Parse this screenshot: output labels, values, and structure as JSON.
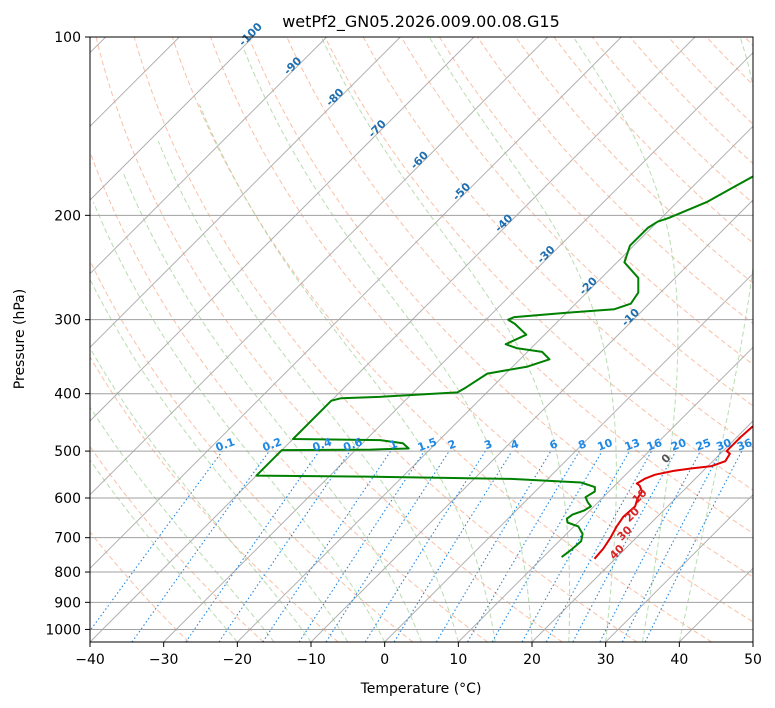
{
  "chart_data": {
    "type": "line",
    "title": "wetPf2_GN05.2026.009.00.08.G15",
    "xlabel": "Temperature (°C)",
    "ylabel": "Pressure (hPa)",
    "xlim": [
      -40,
      50
    ],
    "ylim": [
      1050,
      100
    ],
    "y_scale": "log",
    "x_ticks": [
      -40,
      -30,
      -20,
      -10,
      0,
      10,
      20,
      30,
      40,
      50
    ],
    "x_tick_labels": [
      "−40",
      "−30",
      "−20",
      "−10",
      "0",
      "10",
      "20",
      "30",
      "40",
      "50"
    ],
    "y_ticks": [
      100,
      200,
      300,
      400,
      500,
      600,
      700,
      800,
      900,
      1000
    ],
    "y_tick_labels": [
      "100",
      "200",
      "300",
      "400",
      "500",
      "600",
      "700",
      "800",
      "900",
      "1000"
    ],
    "grid": true,
    "colors": {
      "temperature": "#e00000",
      "dewpoint": "#008000",
      "isotherm": "#b0b0b0",
      "dry_adiabat": "#f6a582",
      "moist_adiabat": "#a6d39e",
      "mixing_ratio": "#1e88e5",
      "hidden_adiabat": "#d2b48c"
    },
    "series": [
      {
        "key": "temperature",
        "points": [
          [
            17.2,
            760
          ],
          [
            17.0,
            730
          ],
          [
            16.5,
            700
          ],
          [
            15.8,
            670
          ],
          [
            15.4,
            645
          ],
          [
            15.6,
            620
          ],
          [
            14.8,
            600
          ],
          [
            14.5,
            585
          ],
          [
            13.4,
            572
          ],
          [
            12.7,
            567
          ],
          [
            13.2,
            556
          ],
          [
            14.0,
            548
          ],
          [
            16.0,
            540
          ],
          [
            18.0,
            535
          ],
          [
            20.5,
            530
          ],
          [
            21.7,
            520
          ],
          [
            21.3,
            505
          ],
          [
            20.5,
            500
          ],
          [
            20.5,
            475
          ],
          [
            20.7,
            455
          ],
          [
            21.3,
            445
          ],
          [
            20.9,
            430
          ],
          [
            20.0,
            415
          ],
          [
            18.8,
            400
          ],
          [
            16.8,
            375
          ],
          [
            14.6,
            345
          ],
          [
            12.2,
            305
          ],
          [
            10.6,
            270
          ],
          [
            9.8,
            245
          ],
          [
            8.8,
            220
          ],
          [
            7.5,
            200
          ],
          [
            6.6,
            180
          ],
          [
            5.8,
            165
          ],
          [
            5.0,
            155
          ],
          [
            3.8,
            140
          ],
          [
            2.6,
            130
          ],
          [
            2.1,
            125
          ],
          [
            2.0,
            120
          ],
          [
            2.6,
            115
          ],
          [
            4.0,
            110
          ],
          [
            6.5,
            104
          ],
          [
            7.3,
            100
          ]
        ]
      },
      {
        "key": "dewpoint",
        "points": [
          [
            12.5,
            755
          ],
          [
            12.8,
            735
          ],
          [
            13.0,
            710
          ],
          [
            12.2,
            690
          ],
          [
            10.6,
            670
          ],
          [
            8.6,
            660
          ],
          [
            8.0,
            650
          ],
          [
            8.2,
            640
          ],
          [
            9.2,
            630
          ],
          [
            9.6,
            620
          ],
          [
            8.6,
            610
          ],
          [
            7.6,
            598
          ],
          [
            8.1,
            585
          ],
          [
            7.5,
            575
          ],
          [
            5.0,
            565
          ],
          [
            -5.0,
            557
          ],
          [
            -25.0,
            552
          ],
          [
            -40.0,
            550
          ],
          [
            -40.0,
            498
          ],
          [
            -28.0,
            497
          ],
          [
            -23.0,
            495
          ],
          [
            -24.5,
            485
          ],
          [
            -28.0,
            479
          ],
          [
            -40.0,
            477
          ],
          [
            -40.0,
            411
          ],
          [
            -39.0,
            407
          ],
          [
            -34.0,
            405
          ],
          [
            -24.0,
            398
          ],
          [
            -23.5,
            390
          ],
          [
            -22.5,
            370
          ],
          [
            -18.0,
            360
          ],
          [
            -16.0,
            350
          ],
          [
            -18.0,
            340
          ],
          [
            -22.0,
            335
          ],
          [
            -24.0,
            330
          ],
          [
            -22.5,
            318
          ],
          [
            -25.5,
            305
          ],
          [
            -27.0,
            300
          ],
          [
            -26.5,
            297
          ],
          [
            -20.0,
            292
          ],
          [
            -14.0,
            288
          ],
          [
            -12.5,
            282
          ],
          [
            -13.0,
            270
          ],
          [
            -15.0,
            255
          ],
          [
            -19.0,
            240
          ],
          [
            -20.5,
            225
          ],
          [
            -20.5,
            210
          ],
          [
            -20.0,
            205
          ],
          [
            -19.0,
            202
          ],
          [
            -16.0,
            190
          ],
          [
            -14.5,
            180
          ],
          [
            -12.0,
            165
          ],
          [
            -9.5,
            155
          ],
          [
            -8.0,
            150
          ],
          [
            -7.5,
            148
          ],
          [
            -5.5,
            140
          ],
          [
            -3.5,
            130
          ],
          [
            -2.8,
            120
          ],
          [
            -2.0,
            110
          ],
          [
            -1.5,
            104
          ],
          [
            -0.7,
            100
          ]
        ]
      }
    ],
    "dry_adiabat_labels": [
      "-100",
      "-90",
      "-80",
      "-70",
      "-60",
      "-50",
      "-40",
      "-30",
      "-20",
      "-10"
    ],
    "mixing_ratio_labels": [
      "0.1",
      "0.2",
      "0.4",
      "0.6",
      "1",
      "1.5",
      "2",
      "3",
      "4",
      "6",
      "8",
      "10",
      "13",
      "16",
      "20",
      "25",
      "30",
      "36"
    ],
    "moist_adiabat_labels": [
      "0",
      "10",
      "20",
      "30",
      "40"
    ]
  }
}
